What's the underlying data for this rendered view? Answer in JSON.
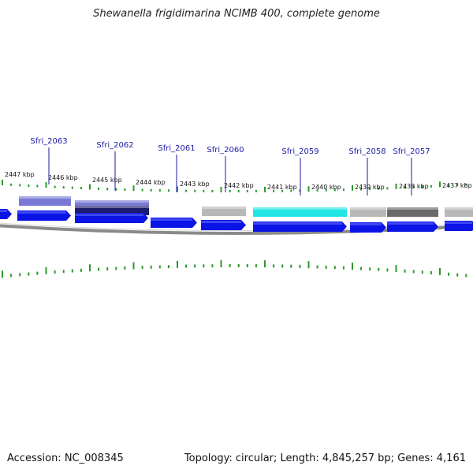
{
  "title": "Shewanella frigidimarina NCIMB 400, complete genome",
  "footer": {
    "accession": "Accession: NC_008345",
    "summary": "Topology: circular; Length: 4,845,257 bp; Genes: 4,161"
  },
  "colors": {
    "cds": "#0a14e6",
    "tick": "#2a9a2a",
    "backbone": "#8a8a8a",
    "gene_label": "#1a1aa6",
    "feature_lavender": "#7a7ad6",
    "feature_navy": "#1c1c6e",
    "feature_gray": "#b8b8b8",
    "feature_cyan": "#22e6e6",
    "feature_dark_gray": "#6a6a6a"
  },
  "kbp_labels": [
    "2447 kbp",
    "2446 kbp",
    "2445 kbp",
    "2444 kbp",
    "2443 kbp",
    "2442 kbp",
    "2441 kbp",
    "2440 kbp",
    "2439 kbp",
    "2438 kbp",
    "2437 kbp"
  ],
  "gene_labels": [
    "Sfri_2063",
    "Sfri_2062",
    "Sfri_2061",
    "Sfri_2060",
    "Sfri_2059",
    "Sfri_2058",
    "Sfri_2057"
  ]
}
